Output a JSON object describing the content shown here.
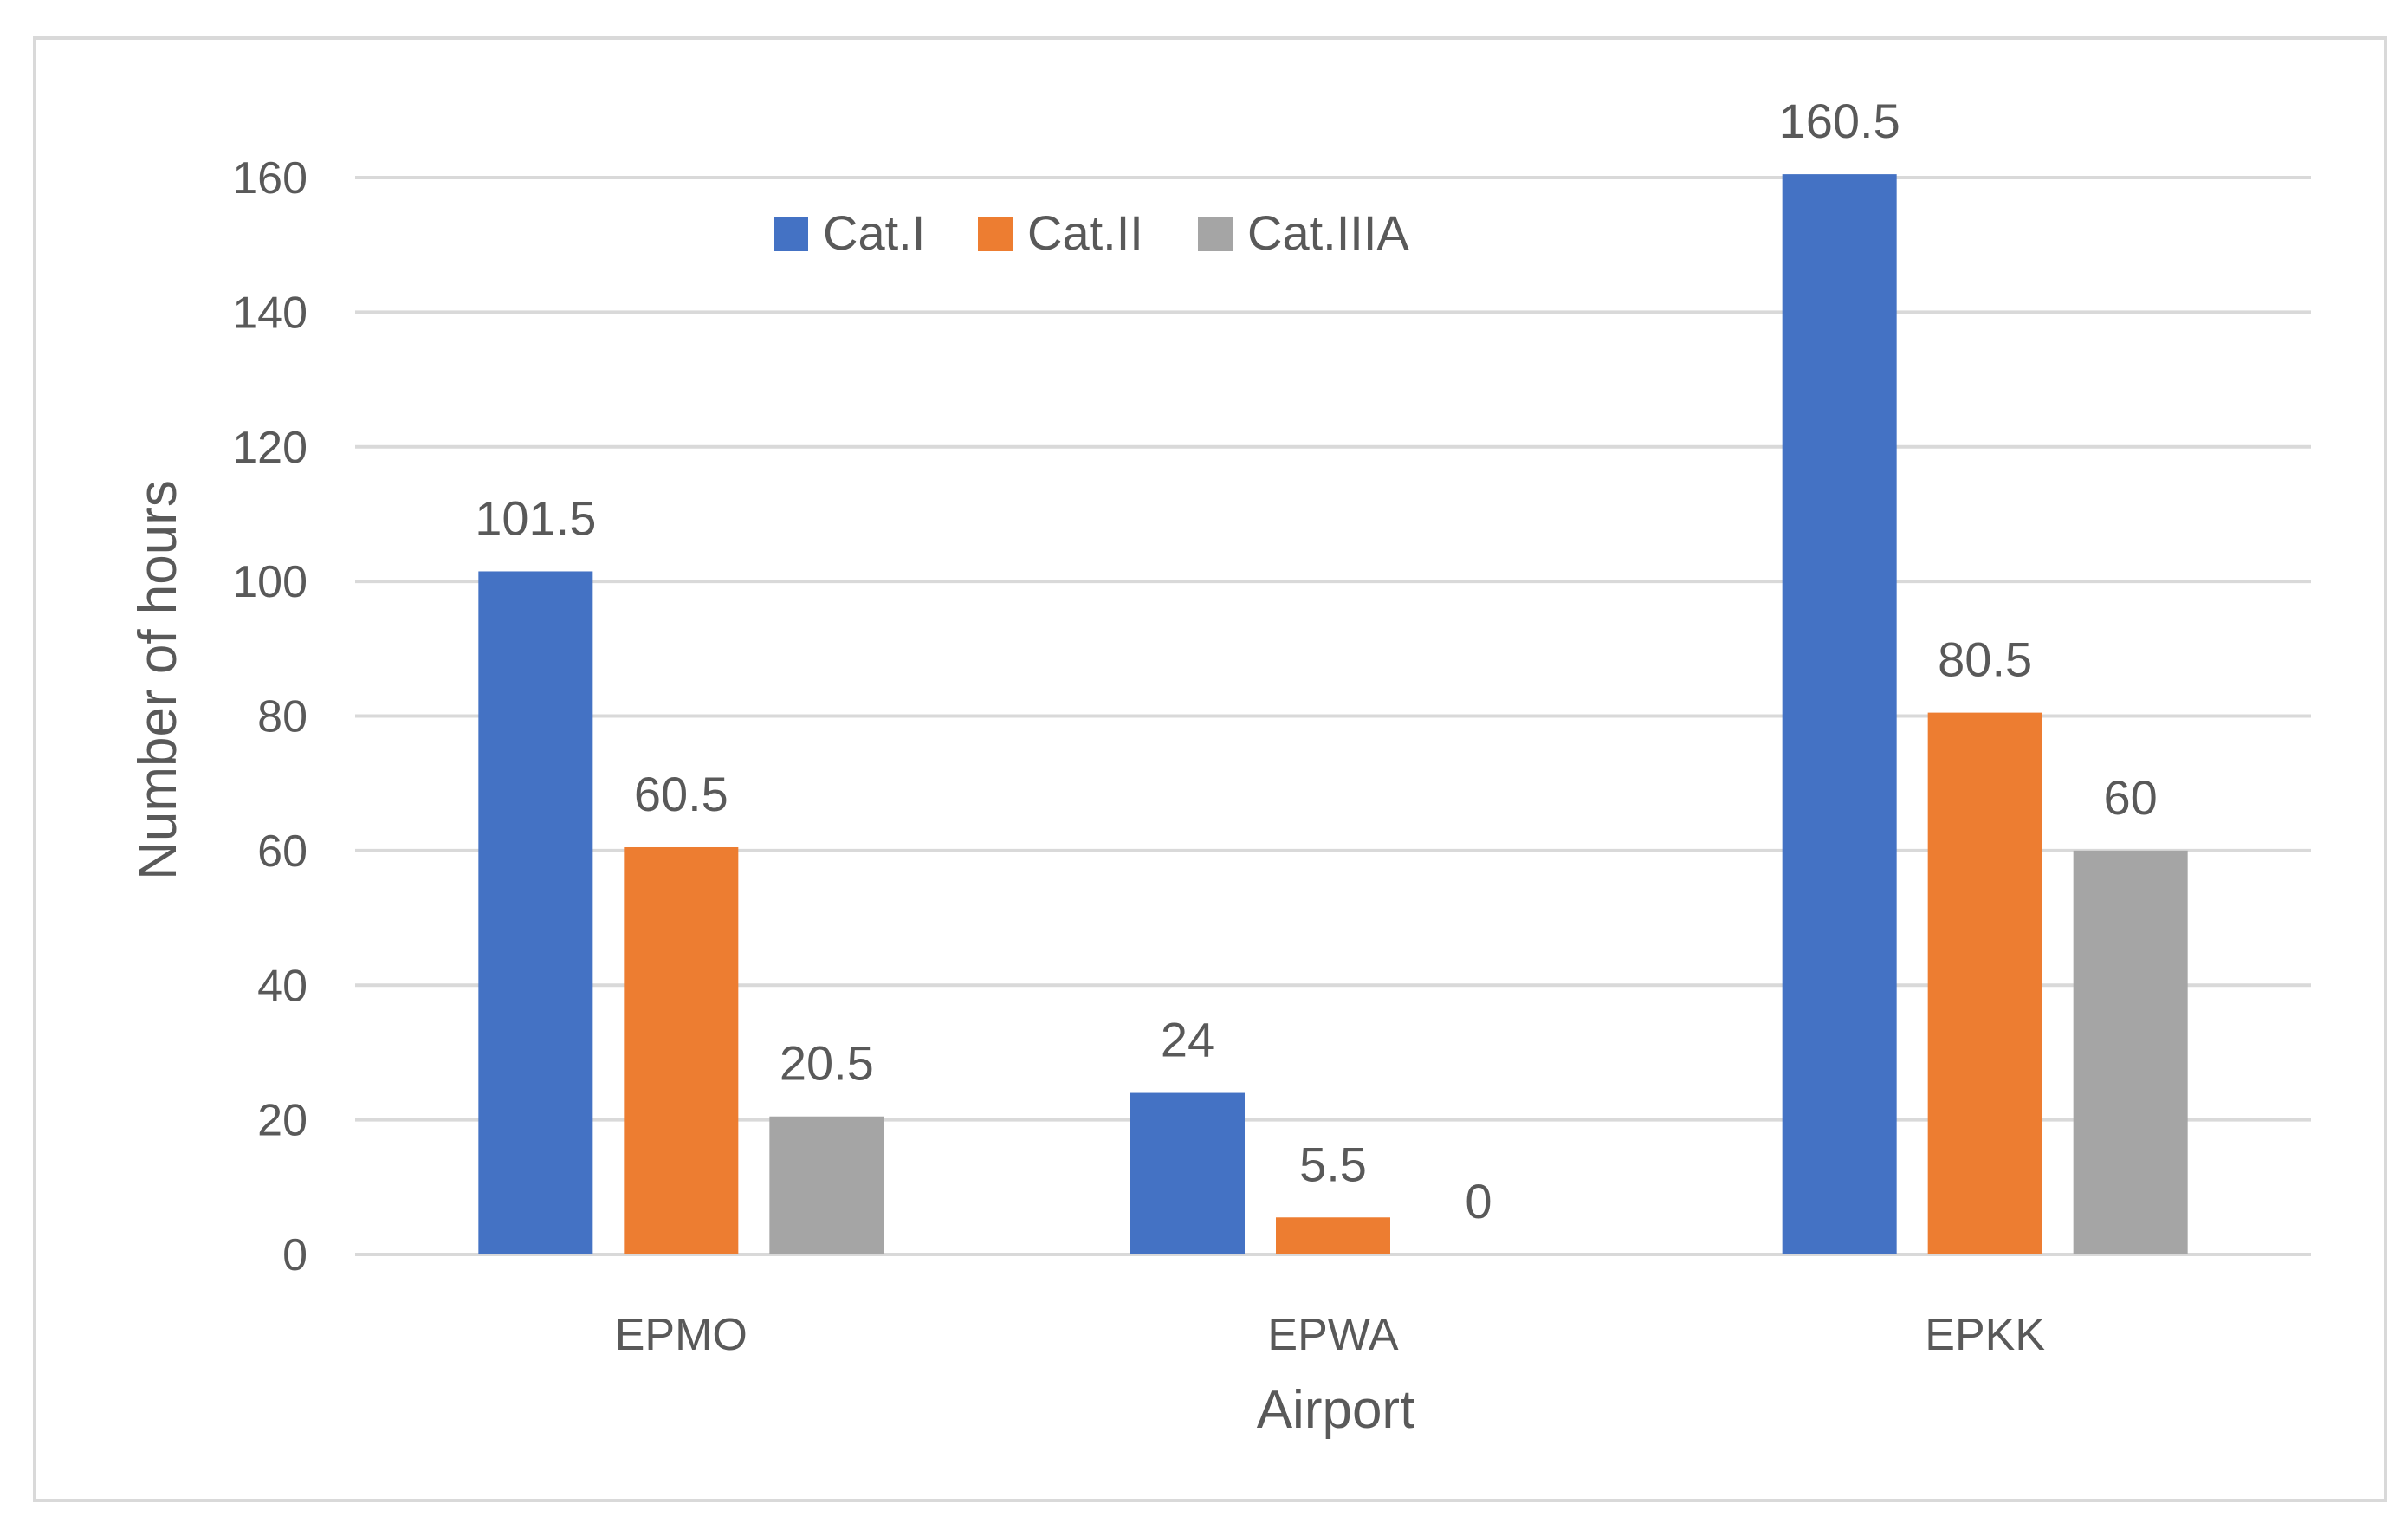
{
  "chart_data": {
    "type": "bar",
    "title": "",
    "xlabel": "Airport",
    "ylabel": "Number of hours",
    "categories": [
      "EPMO",
      "EPWA",
      "EPKK"
    ],
    "series": [
      {
        "name": "Cat.I",
        "color": "#4472C4",
        "values": [
          101.5,
          24,
          160.5
        ],
        "labels": [
          "101.5",
          "24",
          "160.5"
        ]
      },
      {
        "name": "Cat.II",
        "color": "#ED7D31",
        "values": [
          60.5,
          5.5,
          80.5
        ],
        "labels": [
          "60.5",
          "5.5",
          "80.5"
        ]
      },
      {
        "name": "Cat.IIIA",
        "color": "#A5A5A5",
        "values": [
          20.5,
          0,
          60
        ],
        "labels": [
          "20.5",
          "0",
          "60"
        ]
      }
    ],
    "ylim": [
      0,
      160
    ],
    "yticks": [
      0,
      20,
      40,
      60,
      80,
      100,
      120,
      140,
      160
    ],
    "ytick_labels": [
      "0",
      "20",
      "40",
      "60",
      "80",
      "100",
      "120",
      "140",
      "160"
    ],
    "grid": true,
    "legend_position": "top-left"
  }
}
